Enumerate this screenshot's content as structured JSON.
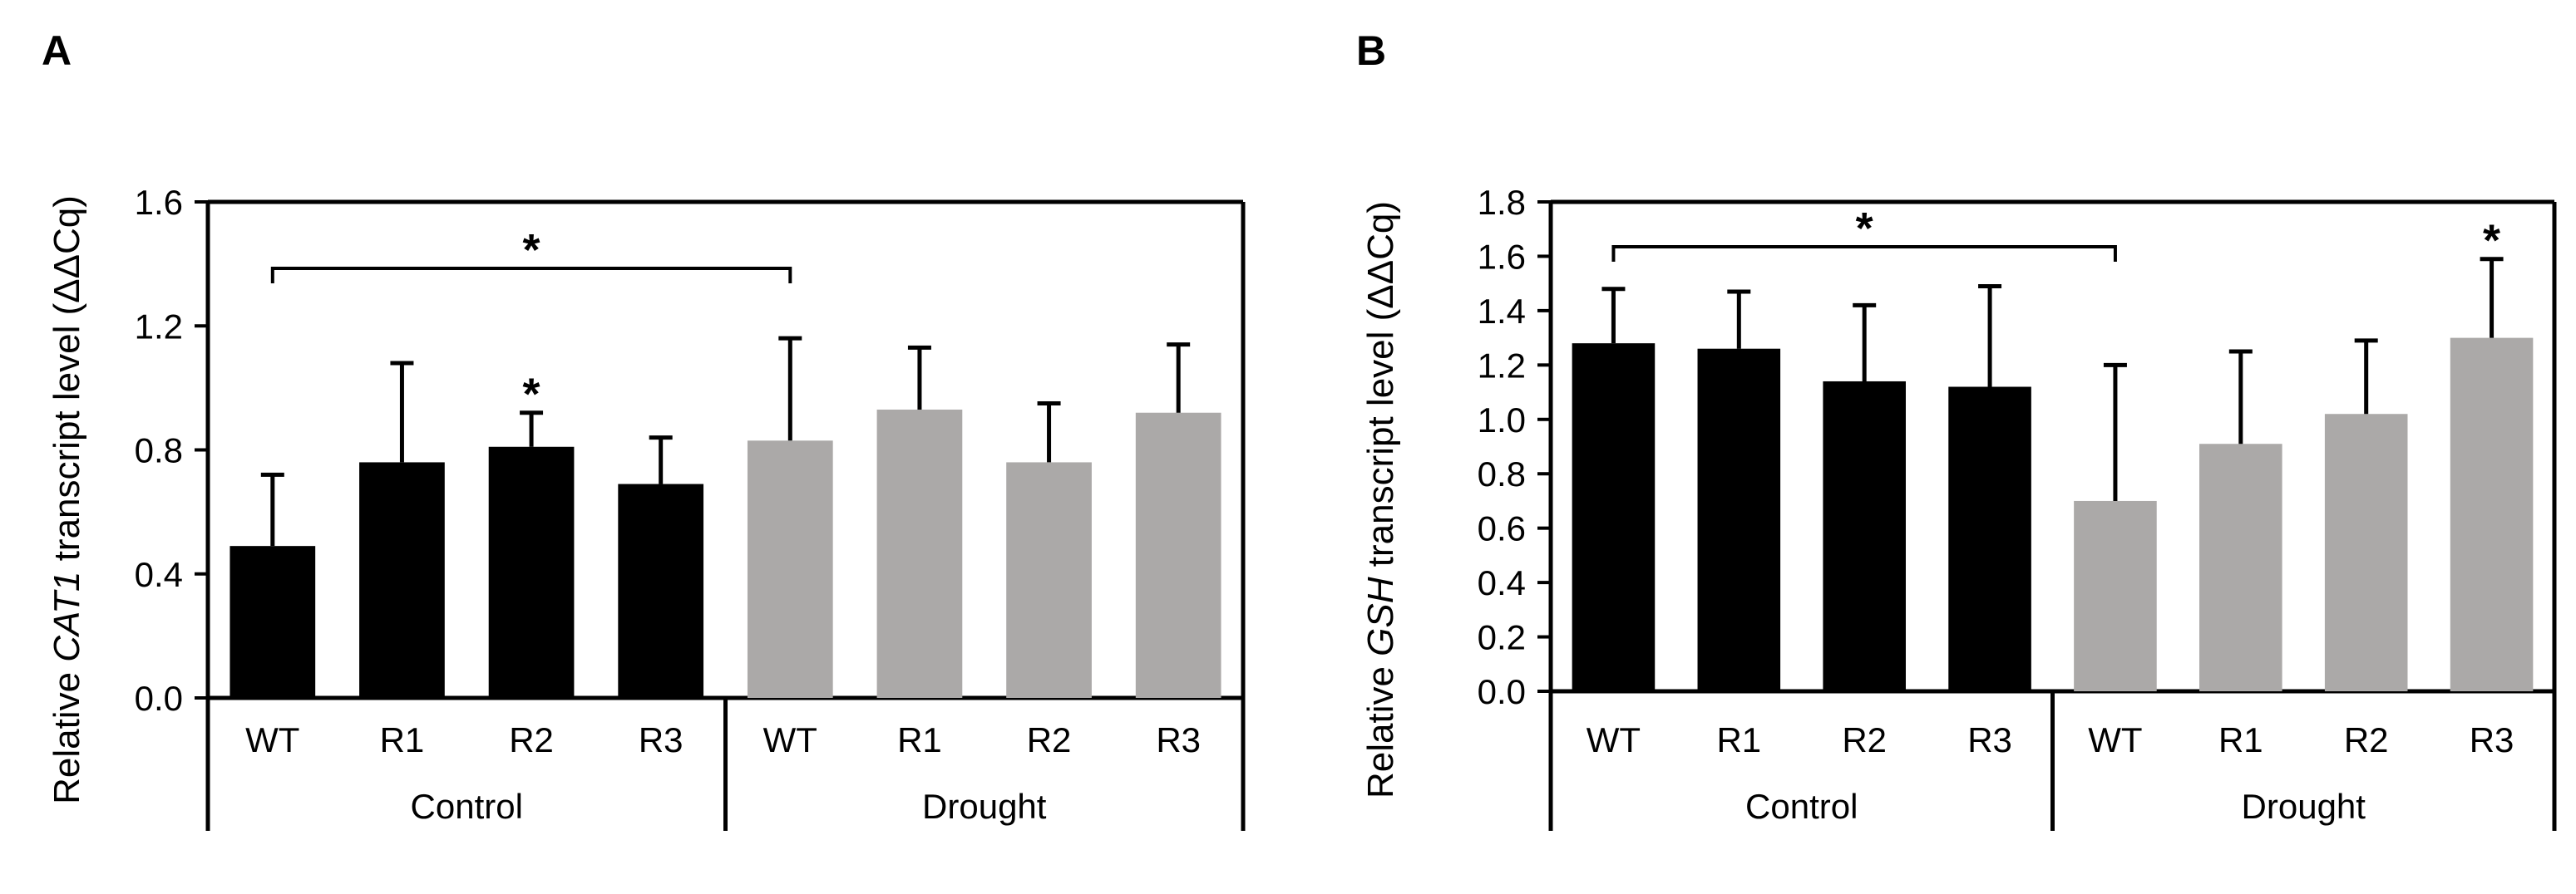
{
  "chart_data": [
    {
      "type": "bar",
      "panel": "A",
      "ylabel_prefix": "Relative ",
      "ylabel_gene": "CAT1",
      "ylabel_suffix": " transcript level (ΔΔCq)",
      "ylim": [
        0,
        1.6
      ],
      "yticks": [
        "0.0",
        "0.4",
        "0.8",
        "1.2",
        "1.6"
      ],
      "ytick_values": [
        0,
        0.4,
        0.8,
        1.2,
        1.6
      ],
      "categories": [
        "WT",
        "R1",
        "R2",
        "R3",
        "WT",
        "R1",
        "R2",
        "R3"
      ],
      "groups": [
        {
          "name": "Control",
          "color": "#000000"
        },
        {
          "name": "Drought",
          "color": "#aba9a8"
        }
      ],
      "values": [
        0.49,
        0.76,
        0.81,
        0.69,
        0.83,
        0.93,
        0.76,
        0.92
      ],
      "errors": [
        0.23,
        0.32,
        0.11,
        0.15,
        0.33,
        0.2,
        0.19,
        0.22
      ],
      "significance": [
        {
          "index": 2,
          "label": "*"
        }
      ],
      "bracket": {
        "from": 0,
        "to": 4,
        "label": "*"
      }
    },
    {
      "type": "bar",
      "panel": "B",
      "ylabel_prefix": "Relative ",
      "ylabel_gene": "GSH",
      "ylabel_suffix": " transcript level (ΔΔCq)",
      "ylim": [
        0,
        1.8
      ],
      "yticks": [
        "0.0",
        "0.2",
        "0.4",
        "0.6",
        "0.8",
        "1.0",
        "1.2",
        "1.4",
        "1.6",
        "1.8"
      ],
      "ytick_values": [
        0,
        0.2,
        0.4,
        0.6,
        0.8,
        1.0,
        1.2,
        1.4,
        1.6,
        1.8
      ],
      "categories": [
        "WT",
        "R1",
        "R2",
        "R3",
        "WT",
        "R1",
        "R2",
        "R3"
      ],
      "groups": [
        {
          "name": "Control",
          "color": "#000000"
        },
        {
          "name": "Drought",
          "color": "#aba9a8"
        }
      ],
      "values": [
        1.28,
        1.26,
        1.14,
        1.12,
        0.7,
        0.91,
        1.02,
        1.3
      ],
      "errors": [
        0.2,
        0.21,
        0.28,
        0.37,
        0.5,
        0.34,
        0.27,
        0.29
      ],
      "significance": [
        {
          "index": 7,
          "label": "*"
        }
      ],
      "bracket": {
        "from": 0,
        "to": 4,
        "label": "*"
      }
    }
  ]
}
